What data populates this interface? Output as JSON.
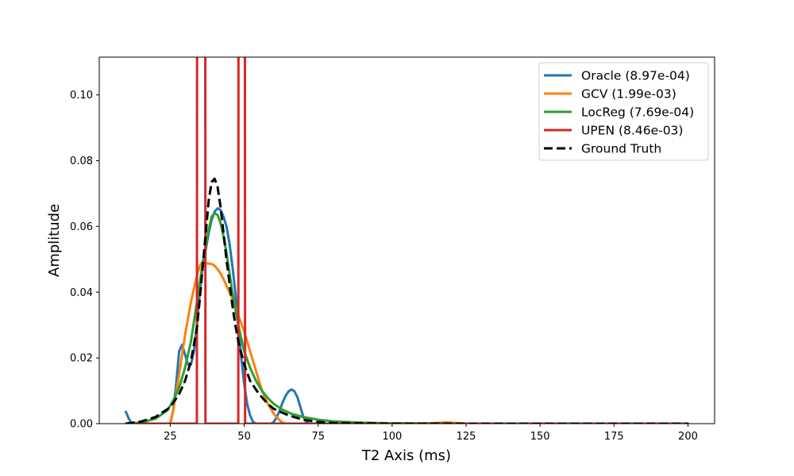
{
  "chart_data": {
    "type": "line",
    "xlabel": "T2 Axis (ms)",
    "ylabel": "Amplitude",
    "xlim": [
      1,
      209
    ],
    "ylim": [
      0,
      0.1115
    ],
    "xticks": [
      25,
      50,
      75,
      100,
      125,
      150,
      175,
      200
    ],
    "xtick_labels": [
      "25",
      "50",
      "75",
      "100",
      "125",
      "150",
      "175",
      "200"
    ],
    "yticks": [
      0,
      0.02,
      0.04,
      0.06,
      0.08,
      0.1
    ],
    "ytick_labels": [
      "0.00",
      "0.02",
      "0.04",
      "0.06",
      "0.08",
      "0.10"
    ],
    "grid": false,
    "legend_position": "top-right",
    "series": [
      {
        "name": "Oracle (8.97e-04)",
        "color": "#1f77b4",
        "style": "solid",
        "x": [
          10,
          11,
          12,
          15,
          20,
          25,
          26,
          27,
          28,
          29,
          30,
          31,
          32,
          33,
          34,
          35,
          36,
          37,
          38,
          39,
          40,
          41,
          42,
          43,
          44,
          45,
          46,
          47,
          48,
          49,
          50,
          51,
          52,
          53,
          54,
          55,
          57,
          59,
          60,
          61,
          62,
          63,
          64,
          65,
          66,
          67,
          68,
          69,
          70,
          71,
          72,
          74,
          80,
          100,
          150,
          200
        ],
        "y": [
          0.0036,
          0.0015,
          0.0,
          0.0,
          0.0,
          0.0,
          0.004,
          0.012,
          0.022,
          0.024,
          0.021,
          0.018,
          0.018,
          0.022,
          0.03,
          0.04,
          0.048,
          0.053,
          0.058,
          0.062,
          0.0645,
          0.0655,
          0.065,
          0.063,
          0.06,
          0.055,
          0.048,
          0.04,
          0.03,
          0.02,
          0.012,
          0.006,
          0.0025,
          0.0005,
          0.0,
          0.0,
          0.0,
          0.0,
          0.0005,
          0.002,
          0.004,
          0.0065,
          0.0085,
          0.0098,
          0.0104,
          0.0098,
          0.008,
          0.005,
          0.002,
          0.0005,
          0.0,
          0.0,
          0.0,
          0.0,
          0.0,
          0.0
        ]
      },
      {
        "name": "GCV (1.99e-03)",
        "color": "#ff7f0e",
        "style": "solid",
        "x": [
          10,
          15,
          20,
          25,
          26,
          28,
          30,
          32,
          34,
          35,
          36,
          37,
          38,
          39,
          40,
          41,
          42,
          43,
          44,
          45,
          46,
          48,
          50,
          52,
          54,
          56,
          58,
          60,
          62,
          63,
          64,
          65,
          66,
          70,
          80,
          100,
          110,
          115,
          118,
          121,
          125,
          150,
          175,
          200
        ],
        "y": [
          0.0,
          0.0,
          0.0,
          0.0,
          0.004,
          0.015,
          0.027,
          0.037,
          0.045,
          0.048,
          0.0495,
          0.0488,
          0.0487,
          0.0486,
          0.048,
          0.047,
          0.0457,
          0.044,
          0.042,
          0.04,
          0.038,
          0.033,
          0.028,
          0.022,
          0.016,
          0.01,
          0.006,
          0.003,
          0.001,
          0.0003,
          0.0,
          0.0,
          0.0,
          0.0,
          0.0,
          0.0,
          0.0,
          0.0002,
          0.0004,
          0.0002,
          0.0,
          0.0,
          0.0,
          0.0
        ]
      },
      {
        "name": "LocReg (7.69e-04)",
        "color": "#2ca02c",
        "style": "solid",
        "x": [
          10,
          15,
          20,
          24,
          26,
          28,
          30,
          32,
          33,
          34,
          35,
          36,
          37,
          38,
          39,
          40,
          41,
          42,
          43,
          44,
          45,
          46,
          47,
          48,
          49,
          50,
          52,
          54,
          56,
          58,
          60,
          63,
          66,
          70,
          75,
          80,
          90,
          100,
          125,
          150,
          175,
          200
        ],
        "y": [
          0.0,
          0.0003,
          0.0015,
          0.004,
          0.007,
          0.011,
          0.017,
          0.025,
          0.031,
          0.037,
          0.043,
          0.049,
          0.054,
          0.059,
          0.063,
          0.064,
          0.0635,
          0.061,
          0.057,
          0.052,
          0.046,
          0.04,
          0.035,
          0.03,
          0.026,
          0.022,
          0.017,
          0.013,
          0.01,
          0.0078,
          0.006,
          0.0042,
          0.003,
          0.002,
          0.0012,
          0.0007,
          0.0003,
          0.0001,
          0.0,
          0.0,
          0.0,
          0.0
        ]
      },
      {
        "name": "UPEN (8.46e-03)",
        "color": "#d62728",
        "style": "solid",
        "x": [
          10,
          34,
          34.1,
          36.8,
          36.9,
          48,
          48.1,
          50.2,
          50.3,
          200
        ],
        "y": [
          0.0,
          0.0,
          0.2,
          0.2,
          0.0,
          0.0,
          0.2,
          0.2,
          0.0,
          0.0
        ]
      },
      {
        "name": "Ground Truth",
        "color": "#000000",
        "style": "dashed",
        "x": [
          10,
          15,
          20,
          25,
          28,
          30,
          32,
          34,
          35,
          36,
          37,
          38,
          39,
          40,
          41,
          42,
          43,
          44,
          45,
          46,
          47,
          48,
          50,
          52,
          55,
          58,
          60,
          65,
          70,
          75,
          80,
          100,
          125,
          150,
          175,
          200
        ],
        "y": [
          0.0,
          0.0006,
          0.002,
          0.005,
          0.009,
          0.013,
          0.019,
          0.029,
          0.038,
          0.048,
          0.058,
          0.068,
          0.0735,
          0.0745,
          0.072,
          0.066,
          0.058,
          0.05,
          0.043,
          0.036,
          0.03,
          0.025,
          0.018,
          0.013,
          0.009,
          0.006,
          0.0045,
          0.0025,
          0.0012,
          0.0005,
          0.0002,
          0.0,
          0.0,
          0.0,
          0.0,
          0.0
        ]
      }
    ]
  }
}
